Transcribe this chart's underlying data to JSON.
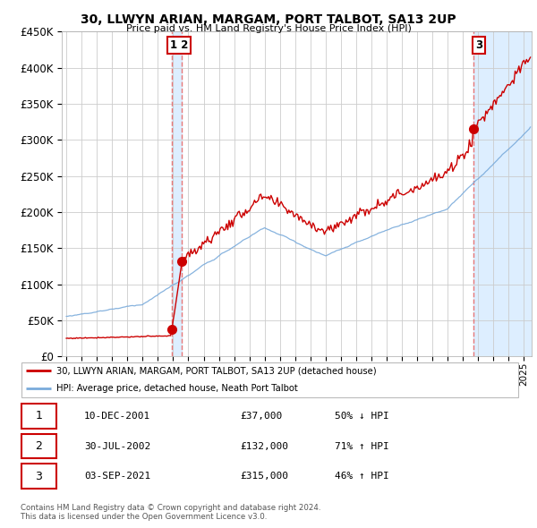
{
  "title": "30, LLWYN ARIAN, MARGAM, PORT TALBOT, SA13 2UP",
  "subtitle": "Price paid vs. HM Land Registry's House Price Index (HPI)",
  "legend_line1": "30, LLWYN ARIAN, MARGAM, PORT TALBOT, SA13 2UP (detached house)",
  "legend_line2": "HPI: Average price, detached house, Neath Port Talbot",
  "transactions": [
    {
      "num": 1,
      "date": "10-DEC-2001",
      "price": 37000,
      "change": "50% ↓ HPI",
      "x_year": 2001.94
    },
    {
      "num": 2,
      "date": "30-JUL-2002",
      "price": 132000,
      "change": "71% ↑ HPI",
      "x_year": 2002.58
    },
    {
      "num": 3,
      "date": "03-SEP-2021",
      "price": 315000,
      "change": "46% ↑ HPI",
      "x_year": 2021.67
    }
  ],
  "vline_color": "#e87878",
  "property_line_color": "#cc0000",
  "hpi_line_color": "#7aabdb",
  "shade_color": "#ddeeff",
  "background_color": "#ffffff",
  "grid_color": "#cccccc",
  "ylim": [
    0,
    450000
  ],
  "xlim_start": 1994.7,
  "xlim_end": 2025.5,
  "footer": "Contains HM Land Registry data © Crown copyright and database right 2024.\nThis data is licensed under the Open Government Licence v3.0.",
  "table_rows": [
    [
      1,
      "10-DEC-2001",
      "£37,000",
      "50% ↓ HPI"
    ],
    [
      2,
      "30-JUL-2002",
      "£132,000",
      "71% ↑ HPI"
    ],
    [
      3,
      "03-SEP-2021",
      "£315,000",
      "46% ↑ HPI"
    ]
  ]
}
